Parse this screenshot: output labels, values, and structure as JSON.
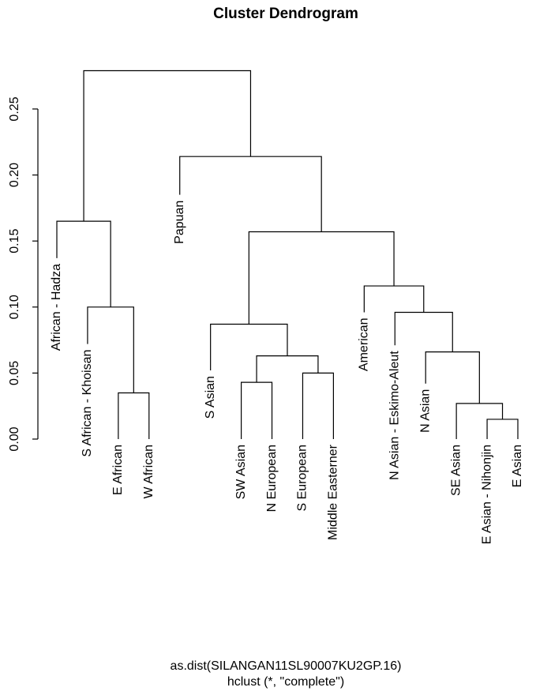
{
  "chart_data": {
    "type": "dendrogram",
    "title": "Cluster Dendrogram",
    "xlabel": "as.dist(SILANGAN11SL90007KU2GP.16)",
    "sublabel": "hclust (*, \"complete\")",
    "ylabel": "",
    "ylim": [
      0,
      0.28
    ],
    "yticks": [
      {
        "value": 0.0,
        "label": "0.00"
      },
      {
        "value": 0.05,
        "label": "0.05"
      },
      {
        "value": 0.1,
        "label": "0.10"
      },
      {
        "value": 0.15,
        "label": "0.15"
      },
      {
        "value": 0.2,
        "label": "0.20"
      },
      {
        "value": 0.25,
        "label": "0.25"
      }
    ],
    "leaves": [
      "African - Hadza",
      "S African - Khoisan",
      "E African",
      "W African",
      "Papuan",
      "S Asian",
      "SW Asian",
      "N European",
      "S European",
      "Middle Easterner",
      "American",
      "N Asian - Eskimo-Aleut",
      "N Asian",
      "SE Asian",
      "E Asian - Nihonjin",
      "E Asian"
    ],
    "merges": [
      {
        "id": "m1",
        "left": "L2",
        "right": "L3",
        "height": 0.035
      },
      {
        "id": "m2",
        "left": "L1",
        "right": "m1",
        "height": 0.1
      },
      {
        "id": "m3",
        "left": "L0",
        "right": "m2",
        "height": 0.165
      },
      {
        "id": "m4",
        "left": "L6",
        "right": "L7",
        "height": 0.043
      },
      {
        "id": "m5",
        "left": "L8",
        "right": "L9",
        "height": 0.05
      },
      {
        "id": "m6",
        "left": "m4",
        "right": "m5",
        "height": 0.063
      },
      {
        "id": "m7",
        "left": "L5",
        "right": "m6",
        "height": 0.087
      },
      {
        "id": "m8",
        "left": "L14",
        "right": "L15",
        "height": 0.015
      },
      {
        "id": "m9",
        "left": "L13",
        "right": "m8",
        "height": 0.027
      },
      {
        "id": "m10",
        "left": "L12",
        "right": "m9",
        "height": 0.066
      },
      {
        "id": "m11",
        "left": "L11",
        "right": "m10",
        "height": 0.096
      },
      {
        "id": "m12",
        "left": "L10",
        "right": "m11",
        "height": 0.116
      },
      {
        "id": "m13",
        "left": "m7",
        "right": "m12",
        "height": 0.157
      },
      {
        "id": "m14",
        "left": "L4",
        "right": "m13",
        "height": 0.214
      },
      {
        "id": "m15",
        "left": "m3",
        "right": "m14",
        "height": 0.279
      }
    ],
    "leaf_hang_heights": [
      0.137,
      0.072,
      0.0,
      0.0,
      0.185,
      0.052,
      0.0,
      0.0,
      0.0,
      0.0,
      0.096,
      0.071,
      0.042,
      0.0,
      0.0,
      0.0
    ]
  }
}
